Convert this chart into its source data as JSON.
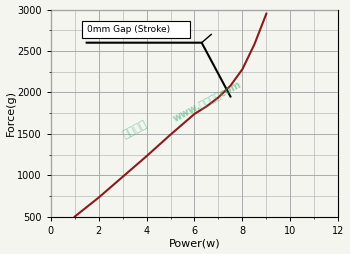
{
  "title": "",
  "xlabel": "Power(w)",
  "ylabel": "Force(g)",
  "xlim": [
    0,
    12
  ],
  "ylim": [
    500,
    3000
  ],
  "xticks": [
    0,
    2,
    4,
    6,
    8,
    10,
    12
  ],
  "yticks": [
    500,
    1000,
    1500,
    2000,
    2500,
    3000
  ],
  "legend_label": "0mm Gap (Stroke)",
  "black_line_x": [
    1.5,
    6.3,
    7.5
  ],
  "black_line_y": [
    2600,
    2600,
    1950
  ],
  "annotation_line_x": [
    6.3,
    6.7,
    6.7
  ],
  "annotation_line_y": [
    2600,
    2700,
    2700
  ],
  "red_line_x": [
    1.0,
    2.0,
    3.0,
    4.0,
    5.0,
    6.0,
    6.5,
    7.0,
    7.5,
    8.0,
    8.5,
    9.0
  ],
  "red_line_y": [
    500,
    730,
    980,
    1230,
    1490,
    1740,
    1830,
    1940,
    2080,
    2280,
    2580,
    2950
  ],
  "black_line_color": "#000000",
  "red_line_color": "#8B1A1A",
  "background_color": "#f5f5f0",
  "grid_color": "#aaaaaa",
  "watermark1": "深圳亚欣",
  "watermark2": "www.螺线管．com",
  "watermark_color": "#3CB371",
  "watermark_alpha": 0.55,
  "fig_width": 3.5,
  "fig_height": 2.54,
  "dpi": 100
}
